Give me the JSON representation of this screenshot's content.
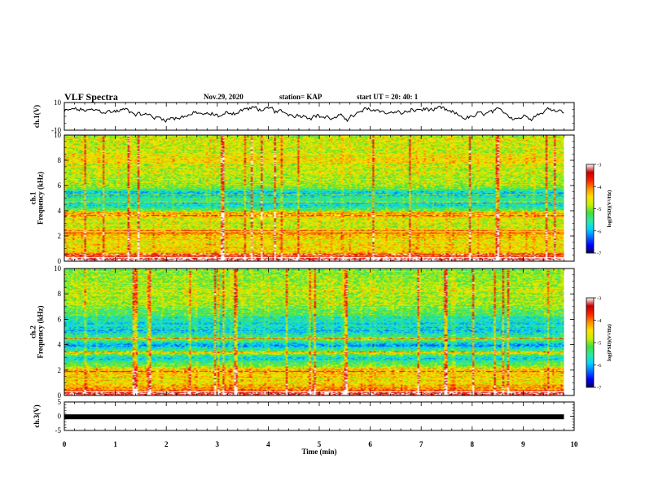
{
  "header": {
    "title": "VLF Spectra",
    "date": "Nov.29, 2020",
    "station": "station= KAP",
    "start": "start UT =  20: 40: 1"
  },
  "colors": {
    "axes": "#000000",
    "colormap": [
      "#000060",
      "#0000ff",
      "#0070ff",
      "#00d8ff",
      "#30e8a0",
      "#40e040",
      "#c8f000",
      "#ffe000",
      "#ff9000",
      "#ff2000",
      "#c00000",
      "#ffffff"
    ]
  },
  "chart_data": [
    {
      "type": "line",
      "name": "ch1-voltage",
      "ylabel": "ch.1(V)",
      "ylim": [
        -10,
        10
      ],
      "yticks": [
        "10",
        "-10"
      ],
      "xlim": [
        0,
        10
      ],
      "x_end": 9.8,
      "samples": 400,
      "level_estimate": 2,
      "noise_amplitude": 3,
      "grid": false
    },
    {
      "type": "heatmap",
      "name": "ch1-spectrogram",
      "ylabel_line1": "ch.1",
      "ylabel_line2": "Frequency (kHz)",
      "ylim": [
        0,
        10
      ],
      "yticks": [
        "0",
        "2",
        "4",
        "6",
        "8",
        "10"
      ],
      "xlim": [
        0,
        9.8
      ],
      "colorbar": {
        "label": "log(PSD)(V²/Hz)",
        "range": [
          -7,
          -3
        ],
        "ticks": [
          "-3",
          "-4",
          "-5",
          "-6",
          "-7"
        ]
      },
      "freq_profile_kHz": [
        [
          0.0,
          -3.0
        ],
        [
          0.3,
          -3.5
        ],
        [
          0.5,
          -4.2
        ],
        [
          1.0,
          -4.5
        ],
        [
          1.5,
          -4.6
        ],
        [
          2.0,
          -4.3
        ],
        [
          2.5,
          -4.7
        ],
        [
          3.0,
          -4.8
        ],
        [
          3.5,
          -4.5
        ],
        [
          3.8,
          -4.1
        ],
        [
          4.0,
          -5.2
        ],
        [
          4.5,
          -5.8
        ],
        [
          5.0,
          -5.5
        ],
        [
          5.3,
          -6.0
        ],
        [
          5.7,
          -5.4
        ],
        [
          6.0,
          -5.0
        ],
        [
          7.0,
          -4.8
        ],
        [
          8.0,
          -4.6
        ],
        [
          9.0,
          -4.7
        ],
        [
          10.0,
          -4.8
        ]
      ],
      "bright_lines_kHz": [
        0.25,
        0.55,
        2.2,
        2.4,
        3.6,
        4.7,
        5.3
      ]
    },
    {
      "type": "heatmap",
      "name": "ch2-spectrogram",
      "ylabel_line1": "ch.2",
      "ylabel_line2": "Frequency (kHz)",
      "ylim": [
        0,
        10
      ],
      "yticks": [
        "0",
        "2",
        "4",
        "6",
        "8",
        "10"
      ],
      "xlim": [
        0,
        9.8
      ],
      "colorbar": {
        "label": "log(PSD)(V²/Hz)",
        "range": [
          -7,
          -3
        ],
        "ticks": [
          "-3",
          "-4",
          "-5",
          "-6",
          "-7"
        ]
      },
      "freq_profile_kHz": [
        [
          0.0,
          -3.2
        ],
        [
          0.3,
          -3.5
        ],
        [
          0.5,
          -4.2
        ],
        [
          1.0,
          -4.6
        ],
        [
          2.0,
          -4.4
        ],
        [
          2.5,
          -5.3
        ],
        [
          3.0,
          -5.8
        ],
        [
          3.3,
          -4.8
        ],
        [
          3.6,
          -5.6
        ],
        [
          4.0,
          -6.0
        ],
        [
          4.5,
          -5.0
        ],
        [
          5.0,
          -5.9
        ],
        [
          6.0,
          -5.6
        ],
        [
          7.0,
          -5.0
        ],
        [
          8.0,
          -4.8
        ],
        [
          9.0,
          -4.9
        ],
        [
          10.0,
          -5.0
        ]
      ],
      "bright_lines_kHz": [
        0.3,
        1.9,
        3.4,
        4.5
      ]
    },
    {
      "type": "line",
      "name": "ch3-voltage",
      "ylabel": "ch.3(V)",
      "ylim": [
        -5,
        5
      ],
      "yticks": [
        "5",
        "0",
        "-5"
      ],
      "xlim": [
        0,
        10
      ],
      "xlabel": "Time (min)",
      "xticks": [
        "0",
        "1",
        "2",
        "3",
        "4",
        "5",
        "6",
        "7",
        "8",
        "9",
        "10"
      ],
      "signal_level": -0.2,
      "x_end": 9.8
    }
  ]
}
